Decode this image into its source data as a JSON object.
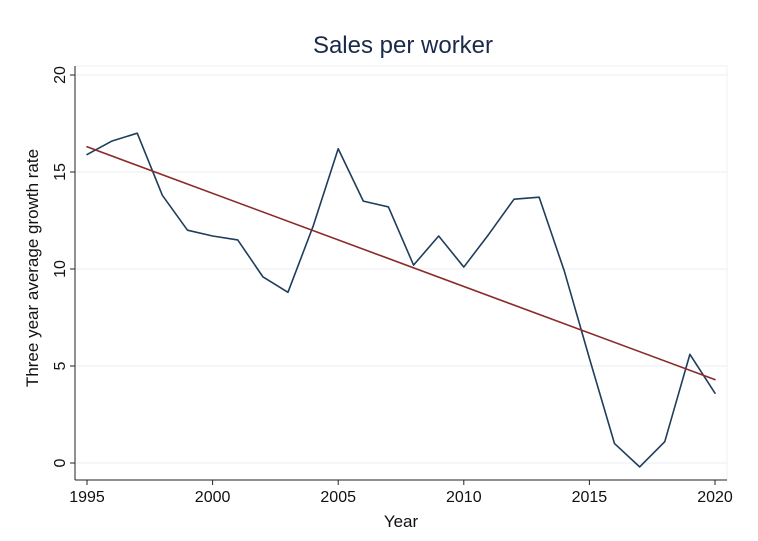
{
  "chart_data": {
    "type": "line",
    "title": "Sales per worker",
    "xlabel": "Year",
    "ylabel": "Three year average growth rate",
    "xlim": [
      1995,
      2020
    ],
    "ylim": [
      0,
      20
    ],
    "x_ticks": [
      1995,
      2000,
      2005,
      2010,
      2015,
      2020
    ],
    "y_ticks": [
      0,
      5,
      10,
      15,
      20
    ],
    "grid": true,
    "legend": "none",
    "series": [
      {
        "values_x": [
          1995,
          1996,
          1997,
          1998,
          1999,
          2000,
          2001,
          2002,
          2003,
          2004,
          2005,
          2006,
          2007,
          2008,
          2009,
          2010,
          2011,
          2012,
          2013,
          2014,
          2015,
          2016,
          2017,
          2018,
          2019,
          2020
        ],
        "values_y": [
          15.9,
          16.6,
          17.0,
          13.8,
          12.0,
          11.7,
          11.5,
          9.6,
          8.8,
          12.2,
          16.2,
          13.5,
          13.2,
          10.2,
          11.7,
          10.1,
          11.8,
          13.6,
          13.7,
          9.9,
          5.4,
          1.0,
          -0.2,
          1.1,
          5.6,
          3.6
        ],
        "color": "#1f3d5c"
      },
      {
        "values_x": [
          1995,
          2020
        ],
        "values_y": [
          16.3,
          4.3
        ],
        "color": "#8b2a2a"
      }
    ]
  }
}
